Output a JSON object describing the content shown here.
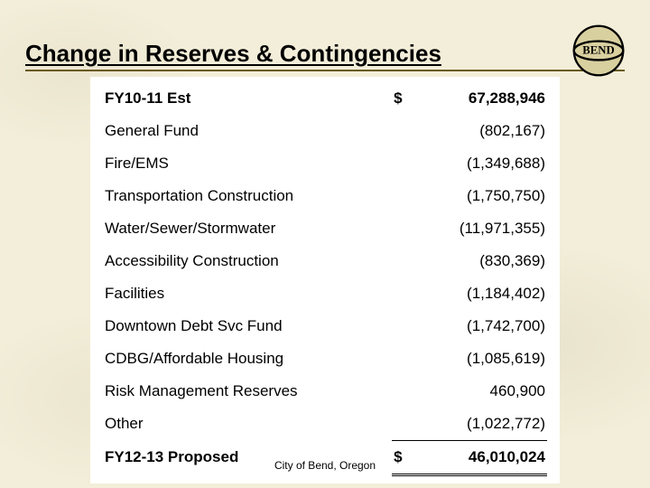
{
  "title": "Change in Reserves & Contingencies",
  "footer": "City of Bend, Oregon",
  "logo": {
    "text": "BEND",
    "stroke": "#000000",
    "fill": "#d9d0a0"
  },
  "colors": {
    "page_bg": "#f3eed9",
    "table_bg": "#ffffff",
    "rule": "#6b5a1f",
    "text": "#000000"
  },
  "table": {
    "type": "table",
    "currency_symbol": "$",
    "header": {
      "label": "FY10-11 Est",
      "value": "67,288,946",
      "show_currency": true,
      "bold": true
    },
    "rows": [
      {
        "label": "General Fund",
        "value": "(802,167)"
      },
      {
        "label": "Fire/EMS",
        "value": "(1,349,688)"
      },
      {
        "label": "Transportation Construction",
        "value": "(1,750,750)"
      },
      {
        "label": "Water/Sewer/Stormwater",
        "value": "(11,971,355)"
      },
      {
        "label": "Accessibility Construction",
        "value": "(830,369)"
      },
      {
        "label": "Facilities",
        "value": "(1,184,402)"
      },
      {
        "label": "Downtown Debt Svc Fund",
        "value": "(1,742,700)"
      },
      {
        "label": "CDBG/Affordable Housing",
        "value": "(1,085,619)"
      },
      {
        "label": "Risk Management Reserves",
        "value": "460,900"
      },
      {
        "label": "Other",
        "value": "(1,022,772)"
      }
    ],
    "footer": {
      "label": "FY12-13 Proposed",
      "value": "46,010,024",
      "show_currency": true,
      "bold": true
    }
  }
}
